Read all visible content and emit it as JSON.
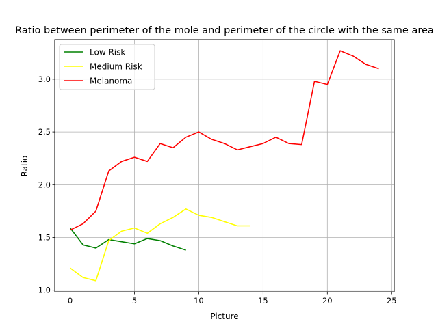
{
  "chart_data": {
    "type": "line",
    "title": "Ratio between perimeter of the mole and perimeter of the circle with the same area",
    "xlabel": "Picture",
    "ylabel": "Ratio",
    "xlim": [
      -1.2,
      25.2
    ],
    "ylim": [
      0.985,
      3.375
    ],
    "grid": true,
    "legend_position": "top-left",
    "x_ticks": [
      0,
      5,
      10,
      15,
      20,
      25
    ],
    "y_ticks": [
      1.0,
      1.5,
      2.0,
      2.5,
      3.0
    ],
    "x_tick_labels": [
      "0",
      "5",
      "10",
      "15",
      "20",
      "25"
    ],
    "y_tick_labels": [
      "1.0",
      "1.5",
      "2.0",
      "2.5",
      "3.0"
    ],
    "series": [
      {
        "name": "Low Risk",
        "color": "#008000",
        "x": [
          0,
          1,
          2,
          3,
          4,
          5,
          6,
          7,
          8,
          9
        ],
        "y": [
          1.59,
          1.43,
          1.4,
          1.48,
          1.46,
          1.44,
          1.49,
          1.47,
          1.42,
          1.38
        ]
      },
      {
        "name": "Medium Risk",
        "color": "#ffff00",
        "x": [
          0,
          1,
          2,
          3,
          4,
          5,
          6,
          7,
          8,
          9,
          10,
          11,
          12,
          13,
          14
        ],
        "y": [
          1.21,
          1.12,
          1.09,
          1.47,
          1.56,
          1.59,
          1.54,
          1.63,
          1.69,
          1.77,
          1.71,
          1.69,
          1.65,
          1.61,
          1.61
        ]
      },
      {
        "name": "Melanoma",
        "color": "#ff0000",
        "x": [
          0,
          1,
          2,
          3,
          4,
          5,
          6,
          7,
          8,
          9,
          10,
          11,
          12,
          13,
          14,
          15,
          16,
          17,
          18,
          19,
          20,
          21,
          22,
          23,
          24
        ],
        "y": [
          1.57,
          1.63,
          1.75,
          2.13,
          2.22,
          2.26,
          2.22,
          2.39,
          2.35,
          2.45,
          2.5,
          2.43,
          2.39,
          2.33,
          2.36,
          2.39,
          2.45,
          2.39,
          2.38,
          2.98,
          2.95,
          3.27,
          3.22,
          3.14,
          3.1
        ]
      }
    ]
  }
}
